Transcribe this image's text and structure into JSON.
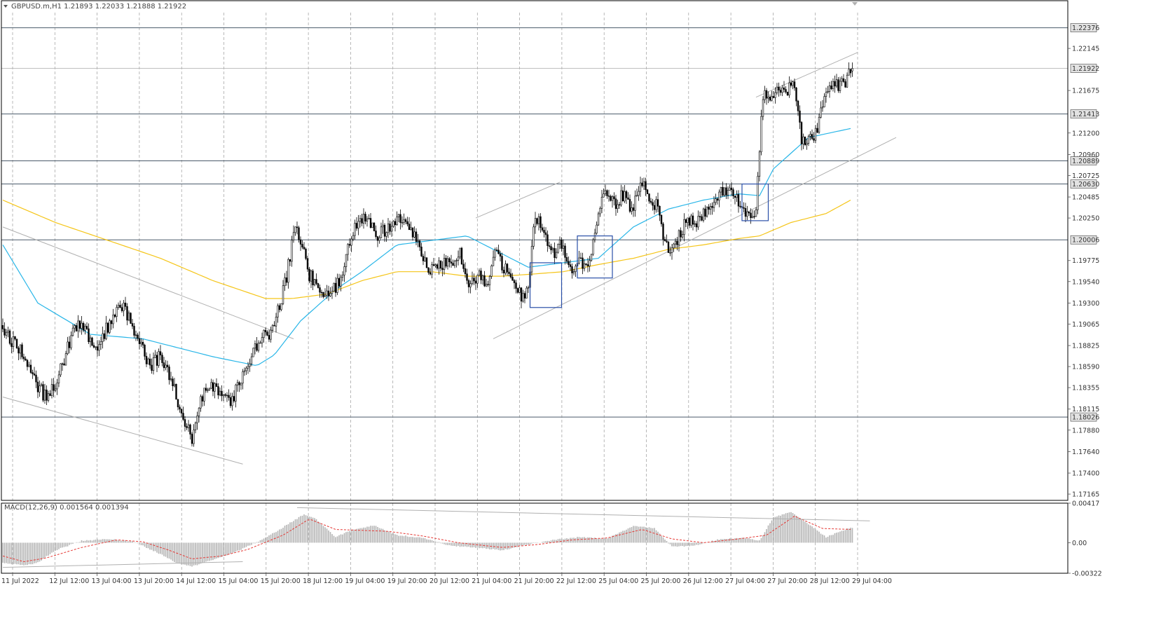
{
  "header": {
    "symbol_info": "GBPUSD.m,H1  1.21893 1.22033 1.21888 1.21922"
  },
  "macd_header": "MACD(12,26,9) 0.001564 0.001394",
  "colors": {
    "background": "#ffffff",
    "candle": "#000000",
    "sma_fast": "#29b6e8",
    "sma_slow": "#f5c518",
    "macd_hist": "#b4b4b4",
    "macd_signal": "#e53935",
    "level_line": "#4a5a6a",
    "channel": "#b0b0b0",
    "box": "#2a4fa8"
  },
  "chart_data": [
    {
      "type": "candlestick",
      "symbol": "GBPUSD.m",
      "timeframe": "H1",
      "ohlc_last": {
        "open": 1.21893,
        "high": 1.22033,
        "low": 1.21888,
        "close": 1.21922
      },
      "ylim": [
        1.17095,
        1.22545
      ],
      "y_ticks": [
        "1.22145",
        "1.21675",
        "1.21200",
        "1.20960",
        "1.20725",
        "1.20485",
        "1.20250",
        "1.19775",
        "1.19540",
        "1.19300",
        "1.19065",
        "1.18825",
        "1.18590",
        "1.18355",
        "1.18115",
        "1.17880",
        "1.17640",
        "1.17400",
        "1.17165"
      ],
      "x_ticks": [
        "11 Jul 2022",
        "12 Jul 12:00",
        "13 Jul 04:00",
        "13 Jul 20:00",
        "14 Jul 12:00",
        "15 Jul 04:00",
        "15 Jul 20:00",
        "18 Jul 12:00",
        "19 Jul 04:00",
        "19 Jul 20:00",
        "20 Jul 12:00",
        "21 Jul 04:00",
        "21 Jul 20:00",
        "22 Jul 12:00",
        "25 Jul 04:00",
        "25 Jul 20:00",
        "26 Jul 12:00",
        "27 Jul 04:00",
        "27 Jul 20:00",
        "28 Jul 12:00",
        "29 Jul 04:00"
      ],
      "price_levels": [
        "1.22376",
        "1.21922",
        "1.21413",
        "1.20889",
        "1.20630",
        "1.20006",
        "1.18026"
      ],
      "current_price": "1.21922",
      "close_path": [
        [
          0,
          1.1905
        ],
        [
          6,
          1.1885
        ],
        [
          12,
          1.1875
        ],
        [
          18,
          1.1845
        ],
        [
          24,
          1.1825
        ],
        [
          30,
          1.1835
        ],
        [
          36,
          1.1875
        ],
        [
          42,
          1.1905
        ],
        [
          48,
          1.1895
        ],
        [
          54,
          1.188
        ],
        [
          60,
          1.1905
        ],
        [
          66,
          1.193
        ],
        [
          72,
          1.1915
        ],
        [
          78,
          1.1885
        ],
        [
          84,
          1.186
        ],
        [
          90,
          1.187
        ],
        [
          96,
          1.1845
        ],
        [
          102,
          1.1805
        ],
        [
          108,
          1.178
        ],
        [
          112,
          1.182
        ],
        [
          118,
          1.184
        ],
        [
          124,
          1.183
        ],
        [
          130,
          1.182
        ],
        [
          136,
          1.1845
        ],
        [
          142,
          1.187
        ],
        [
          148,
          1.1895
        ],
        [
          152,
          1.189
        ],
        [
          157,
          1.192
        ],
        [
          162,
          1.196
        ],
        [
          167,
          1.202
        ],
        [
          170,
          1.2
        ],
        [
          175,
          1.196
        ],
        [
          180,
          1.195
        ],
        [
          186,
          1.1935
        ],
        [
          192,
          1.1955
        ],
        [
          197,
          1.199
        ],
        [
          202,
          1.202
        ],
        [
          208,
          1.2025
        ],
        [
          214,
          1.2005
        ],
        [
          220,
          1.2015
        ],
        [
          226,
          1.2025
        ],
        [
          232,
          1.2015
        ],
        [
          238,
          1.199
        ],
        [
          244,
          1.1965
        ],
        [
          250,
          1.1975
        ],
        [
          256,
          1.197
        ],
        [
          261,
          1.1985
        ],
        [
          266,
          1.194
        ],
        [
          271,
          1.1965
        ],
        [
          276,
          1.195
        ],
        [
          281,
          1.1985
        ],
        [
          286,
          1.197
        ],
        [
          291,
          1.1955
        ],
        [
          296,
          1.1935
        ],
        [
          300,
          1.195
        ],
        [
          304,
          1.203
        ],
        [
          309,
          1.201
        ],
        [
          314,
          1.1985
        ],
        [
          319,
          1.1995
        ],
        [
          324,
          1.1965
        ],
        [
          329,
          1.1975
        ],
        [
          334,
          1.197
        ],
        [
          339,
          1.202
        ],
        [
          344,
          1.2055
        ],
        [
          349,
          1.204
        ],
        [
          354,
          1.205
        ],
        [
          359,
          1.2035
        ],
        [
          364,
          1.2065
        ],
        [
          369,
          1.205
        ],
        [
          374,
          1.2035
        ],
        [
          378,
          1.2
        ],
        [
          382,
          1.1985
        ],
        [
          386,
          1.2005
        ],
        [
          391,
          1.2025
        ],
        [
          396,
          1.202
        ],
        [
          401,
          1.203
        ],
        [
          406,
          1.2045
        ],
        [
          411,
          1.2055
        ],
        [
          416,
          1.206
        ],
        [
          421,
          1.204
        ],
        [
          425,
          1.2025
        ],
        [
          430,
          1.2035
        ],
        [
          434,
          1.2165
        ],
        [
          438,
          1.216
        ],
        [
          443,
          1.2165
        ],
        [
          448,
          1.217
        ],
        [
          452,
          1.2175
        ],
        [
          456,
          1.211
        ],
        [
          460,
          1.2115
        ],
        [
          464,
          1.212
        ],
        [
          468,
          1.215
        ],
        [
          472,
          1.217
        ],
        [
          476,
          1.2175
        ],
        [
          480,
          1.2172
        ],
        [
          484,
          1.2192
        ]
      ],
      "candle_count": 486,
      "indicators": [
        {
          "name": "SMA fast",
          "color": "#29b6e8",
          "path": [
            [
              0,
              1.1995
            ],
            [
              20,
              1.193
            ],
            [
              50,
              1.1895
            ],
            [
              80,
              1.189
            ],
            [
              100,
              1.188
            ],
            [
              120,
              1.187
            ],
            [
              145,
              1.186
            ],
            [
              155,
              1.1872
            ],
            [
              170,
              1.191
            ],
            [
              190,
              1.1945
            ],
            [
              205,
              1.1965
            ],
            [
              225,
              1.1995
            ],
            [
              245,
              1.2
            ],
            [
              265,
              1.2005
            ],
            [
              285,
              1.1985
            ],
            [
              300,
              1.197
            ],
            [
              320,
              1.1975
            ],
            [
              340,
              1.198
            ],
            [
              360,
              1.2015
            ],
            [
              380,
              1.2035
            ],
            [
              400,
              1.2045
            ],
            [
              420,
              1.2052
            ],
            [
              432,
              1.205
            ],
            [
              440,
              1.208
            ],
            [
              460,
              1.2115
            ],
            [
              484,
              1.2125
            ]
          ]
        },
        {
          "name": "SMA slow",
          "color": "#f5c518",
          "path": [
            [
              0,
              1.2045
            ],
            [
              30,
              1.202
            ],
            [
              60,
              1.2
            ],
            [
              90,
              1.198
            ],
            [
              120,
              1.1955
            ],
            [
              150,
              1.1935
            ],
            [
              165,
              1.1935
            ],
            [
              185,
              1.194
            ],
            [
              205,
              1.1955
            ],
            [
              225,
              1.1965
            ],
            [
              245,
              1.1965
            ],
            [
              265,
              1.196
            ],
            [
              285,
              1.196
            ],
            [
              300,
              1.1962
            ],
            [
              320,
              1.1965
            ],
            [
              340,
              1.1973
            ],
            [
              360,
              1.198
            ],
            [
              380,
              1.199
            ],
            [
              400,
              1.1995
            ],
            [
              420,
              1.2002
            ],
            [
              432,
              1.2005
            ],
            [
              450,
              1.202
            ],
            [
              470,
              1.203
            ],
            [
              484,
              1.2045
            ]
          ]
        }
      ],
      "annotations": [
        {
          "type": "channel",
          "color": "#b0b0b0",
          "lines": [
            [
              [
                0,
                1.2015
              ],
              [
                166,
                1.189
              ]
            ],
            [
              [
                0,
                1.1825
              ],
              [
                137,
                1.175
              ]
            ],
            [
              [
                270,
                1.2025
              ],
              [
                318,
                1.2065
              ]
            ],
            [
              [
                280,
                1.189
              ],
              [
                510,
                1.2115
              ]
            ],
            [
              [
                430,
                1.216
              ],
              [
                488,
                1.221
              ]
            ]
          ]
        },
        {
          "type": "box",
          "color": "#2a4fa8",
          "rects": [
            [
              301,
              319,
              1.1975,
              1.1925
            ],
            [
              328,
              348,
              1.2005,
              1.1958
            ],
            [
              422,
              437,
              1.2063,
              1.2022
            ]
          ]
        }
      ]
    },
    {
      "type": "bar",
      "name": "MACD(12,26,9)",
      "values_last": {
        "macd": 0.001564,
        "signal": 0.001394
      },
      "ylim": [
        -0.00322,
        0.00417
      ],
      "y_ticks": [
        "0.00417",
        "0.00",
        "-0.00322"
      ],
      "hist_path": [
        [
          0,
          -0.0021
        ],
        [
          12,
          -0.0024
        ],
        [
          20,
          -0.0021
        ],
        [
          30,
          -0.0008
        ],
        [
          45,
          0.0002
        ],
        [
          60,
          0.0004
        ],
        [
          75,
          0.0001
        ],
        [
          90,
          -0.0012
        ],
        [
          100,
          -0.0022
        ],
        [
          108,
          -0.0025
        ],
        [
          120,
          -0.0018
        ],
        [
          135,
          -0.0008
        ],
        [
          150,
          0.0005
        ],
        [
          165,
          0.0022
        ],
        [
          172,
          0.003
        ],
        [
          178,
          0.0026
        ],
        [
          190,
          0.0006
        ],
        [
          200,
          0.0014
        ],
        [
          212,
          0.0018
        ],
        [
          225,
          0.0008
        ],
        [
          240,
          0.0005
        ],
        [
          255,
          -0.0003
        ],
        [
          270,
          -0.0005
        ],
        [
          285,
          -0.0008
        ],
        [
          300,
          -0.0002
        ],
        [
          315,
          0.0003
        ],
        [
          330,
          0.0006
        ],
        [
          345,
          0.0004
        ],
        [
          360,
          0.0018
        ],
        [
          372,
          0.0015
        ],
        [
          382,
          -0.0004
        ],
        [
          395,
          -0.0003
        ],
        [
          410,
          0.0004
        ],
        [
          425,
          0.0005
        ],
        [
          432,
          0.0002
        ],
        [
          440,
          0.0027
        ],
        [
          450,
          0.0032
        ],
        [
          458,
          0.0022
        ],
        [
          470,
          0.0006
        ],
        [
          484,
          0.0016
        ]
      ],
      "signal_path": [
        [
          0,
          -0.0014
        ],
        [
          12,
          -0.002
        ],
        [
          25,
          -0.0016
        ],
        [
          45,
          -0.0005
        ],
        [
          65,
          0.0003
        ],
        [
          80,
          0.0001
        ],
        [
          95,
          -0.0008
        ],
        [
          108,
          -0.0017
        ],
        [
          125,
          -0.0014
        ],
        [
          140,
          -0.0007
        ],
        [
          160,
          0.0008
        ],
        [
          175,
          0.0025
        ],
        [
          190,
          0.0014
        ],
        [
          205,
          0.0013
        ],
        [
          220,
          0.0012
        ],
        [
          240,
          0.0007
        ],
        [
          260,
          0.0
        ],
        [
          285,
          -0.0005
        ],
        [
          305,
          -0.0002
        ],
        [
          325,
          0.0003
        ],
        [
          345,
          0.0005
        ],
        [
          365,
          0.0014
        ],
        [
          382,
          0.0004
        ],
        [
          400,
          0.0
        ],
        [
          420,
          0.0004
        ],
        [
          436,
          0.0008
        ],
        [
          452,
          0.0028
        ],
        [
          468,
          0.0015
        ],
        [
          484,
          0.0014
        ]
      ],
      "trendlines": [
        [
          [
            0,
            -0.0026
          ],
          [
            137,
            -0.002
          ]
        ],
        [
          [
            168,
            0.0037
          ],
          [
            495,
            0.0023
          ]
        ]
      ]
    }
  ]
}
